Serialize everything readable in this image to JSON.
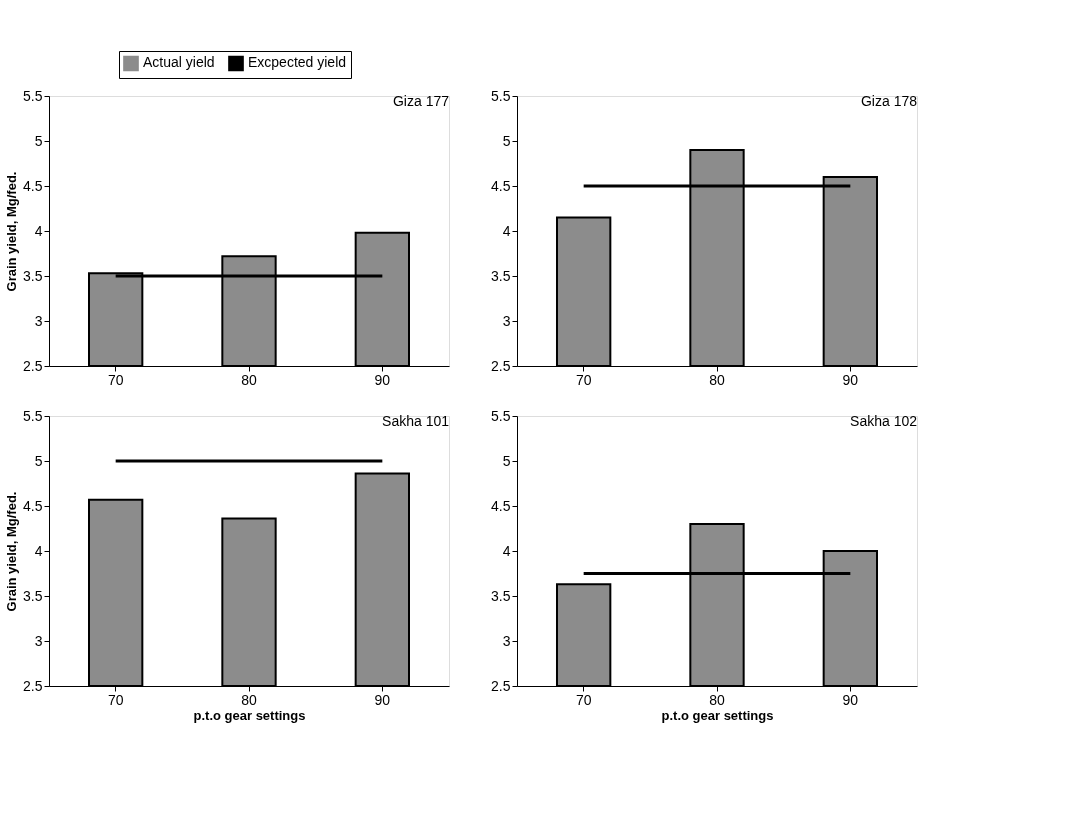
{
  "chart_data": [
    {
      "type": "bar",
      "title": "Giza 177",
      "ylabel": "Grain yield, Mg/fed.",
      "categories": [
        "70",
        "80",
        "90"
      ],
      "ylim": [
        2.5,
        5.5
      ],
      "yticks": [
        2.5,
        3,
        3.5,
        4,
        4.5,
        5,
        5.5
      ],
      "legend": "top",
      "series": [
        {
          "name": "Actual yield",
          "type": "bar",
          "color": "#8c8c8c",
          "values": [
            3.53,
            3.72,
            3.98
          ]
        },
        {
          "name": "Excpected yield",
          "type": "line",
          "color": "#000000",
          "values": [
            3.5,
            3.5,
            3.5
          ]
        }
      ]
    },
    {
      "type": "bar",
      "title": "Giza 178",
      "categories": [
        "70",
        "80",
        "90"
      ],
      "ylim": [
        2.5,
        5.5
      ],
      "yticks": [
        2.5,
        3,
        3.5,
        4,
        4.5,
        5,
        5.5
      ],
      "series": [
        {
          "type": "bar",
          "color": "#8c8c8c",
          "values": [
            4.15,
            4.9,
            4.6
          ]
        },
        {
          "type": "line",
          "color": "#000000",
          "values": [
            4.5,
            4.5,
            4.5
          ]
        }
      ]
    },
    {
      "type": "bar",
      "title": "Sakha 101",
      "xlabel": "p.t.o gear settings",
      "ylabel": "Grain yield, Mg/fed.",
      "categories": [
        "70",
        "80",
        "90"
      ],
      "ylim": [
        2.5,
        5.5
      ],
      "yticks": [
        2.5,
        3,
        3.5,
        4,
        4.5,
        5,
        5.5
      ],
      "series": [
        {
          "type": "bar",
          "color": "#8c8c8c",
          "values": [
            4.57,
            4.36,
            4.86
          ]
        },
        {
          "type": "line",
          "color": "#000000",
          "values": [
            5.0,
            5.0,
            5.0
          ]
        }
      ]
    },
    {
      "type": "bar",
      "title": "Sakha 102",
      "xlabel": "p.t.o gear settings",
      "categories": [
        "70",
        "80",
        "90"
      ],
      "ylim": [
        2.5,
        5.5
      ],
      "yticks": [
        2.5,
        3,
        3.5,
        4,
        4.5,
        5,
        5.5
      ],
      "series": [
        {
          "type": "bar",
          "color": "#8c8c8c",
          "values": [
            3.63,
            4.3,
            4.0
          ]
        },
        {
          "type": "line",
          "color": "#000000",
          "values": [
            3.75,
            3.75,
            3.75
          ]
        }
      ]
    }
  ]
}
